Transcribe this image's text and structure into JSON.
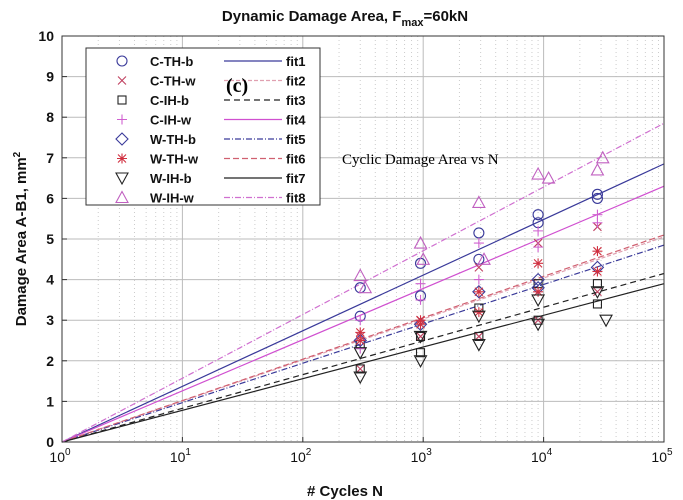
{
  "chart_data": {
    "type": "scatter",
    "title": "Dynamic Damage Area, F",
    "title_sub": "max",
    "title_tail": "=60kN",
    "xlabel": "# Cycles N",
    "ylabel": "Damage Area A-B1, mm",
    "ylabel_sup": "2",
    "xscale": "log",
    "xlim": [
      1,
      100000
    ],
    "ylim": [
      0,
      10
    ],
    "xticks": [
      {
        "base": "10",
        "exp": "0",
        "v": 1
      },
      {
        "base": "10",
        "exp": "1",
        "v": 10
      },
      {
        "base": "10",
        "exp": "2",
        "v": 100
      },
      {
        "base": "10",
        "exp": "3",
        "v": 1000
      },
      {
        "base": "10",
        "exp": "4",
        "v": 10000
      },
      {
        "base": "10",
        "exp": "5",
        "v": 100000
      }
    ],
    "yticks": [
      "0",
      "1",
      "2",
      "3",
      "4",
      "5",
      "6",
      "7",
      "8",
      "9",
      "10"
    ],
    "grid": true,
    "legend_position": "top-left",
    "annotations": [
      "(c)",
      "Cyclic Damage Area vs N"
    ],
    "series": [
      {
        "name": "C-TH-b",
        "marker": "circle",
        "color": "#3a3a9a",
        "x": [
          300,
          300,
          950,
          950,
          2900,
          2900,
          9000,
          9000,
          28000,
          28000
        ],
        "y": [
          3.8,
          3.1,
          4.4,
          3.6,
          5.15,
          4.5,
          5.6,
          5.4,
          6.1,
          6.0
        ]
      },
      {
        "name": "C-TH-w",
        "marker": "x",
        "color": "#c04060",
        "x": [
          300,
          300,
          950,
          950,
          2900,
          2900,
          9000,
          9000,
          28000,
          28000
        ],
        "y": [
          2.6,
          1.8,
          3.0,
          2.6,
          4.3,
          2.6,
          4.9,
          3.0,
          5.3,
          3.7
        ]
      },
      {
        "name": "C-IH-b",
        "marker": "square",
        "color": "#222222",
        "x": [
          300,
          300,
          950,
          950,
          2900,
          2900,
          9000,
          9000,
          28000,
          28000
        ],
        "y": [
          1.8,
          2.4,
          2.6,
          2.2,
          3.3,
          2.6,
          3.0,
          3.9,
          3.4,
          3.9
        ]
      },
      {
        "name": "C-IH-w",
        "marker": "plus",
        "color": "#d060d0",
        "x": [
          300,
          300,
          950,
          950,
          2900,
          2900,
          9000,
          9000,
          28000,
          28000
        ],
        "y": [
          3.0,
          2.3,
          3.9,
          3.5,
          4.9,
          4.0,
          5.2,
          4.8,
          5.6,
          5.4
        ]
      },
      {
        "name": "W-TH-b",
        "marker": "diamond",
        "color": "#3a3a9a",
        "x": [
          300,
          950,
          2900,
          9000,
          9000,
          28000
        ],
        "y": [
          2.5,
          2.9,
          3.7,
          4.0,
          3.8,
          4.3
        ]
      },
      {
        "name": "W-TH-w",
        "marker": "star",
        "color": "#d03040",
        "x": [
          300,
          300,
          950,
          950,
          2900,
          2900,
          9000,
          9000,
          28000,
          28000
        ],
        "y": [
          2.7,
          2.5,
          3.0,
          2.9,
          3.7,
          3.2,
          4.4,
          3.7,
          4.7,
          4.2
        ]
      },
      {
        "name": "W-IH-b",
        "marker": "tri-down",
        "color": "#222222",
        "x": [
          300,
          300,
          950,
          950,
          2900,
          2900,
          9000,
          9000,
          28000,
          33000
        ],
        "y": [
          2.2,
          1.6,
          2.6,
          2.0,
          3.1,
          2.4,
          3.5,
          2.9,
          3.7,
          3.0
        ]
      },
      {
        "name": "W-IH-w",
        "marker": "tri-up",
        "color": "#c060c0",
        "x": [
          300,
          330,
          950,
          1000,
          2900,
          3200,
          9000,
          11000,
          28000,
          31000
        ],
        "y": [
          4.1,
          3.8,
          4.9,
          4.5,
          5.9,
          4.5,
          6.6,
          6.5,
          6.7,
          7.0
        ]
      }
    ],
    "fits": [
      {
        "name": "fit1",
        "slope": 1.37,
        "color": "#3a3a9a",
        "dash": ""
      },
      {
        "name": "fit2",
        "slope": 1.01,
        "color": "#e0a0b0",
        "dash": "4,2"
      },
      {
        "name": "fit3",
        "slope": 0.83,
        "color": "#222222",
        "dash": "6,4"
      },
      {
        "name": "fit4",
        "slope": 1.26,
        "color": "#d050d0",
        "dash": ""
      },
      {
        "name": "fit5",
        "slope": 0.97,
        "color": "#3a3a9a",
        "dash": "6,2,1,2"
      },
      {
        "name": "fit6",
        "slope": 1.02,
        "color": "#d06070",
        "dash": "6,3"
      },
      {
        "name": "fit7",
        "slope": 0.78,
        "color": "#222222",
        "dash": ""
      },
      {
        "name": "fit8",
        "slope": 1.57,
        "color": "#d070d0",
        "dash": "6,2,1,2"
      }
    ]
  }
}
